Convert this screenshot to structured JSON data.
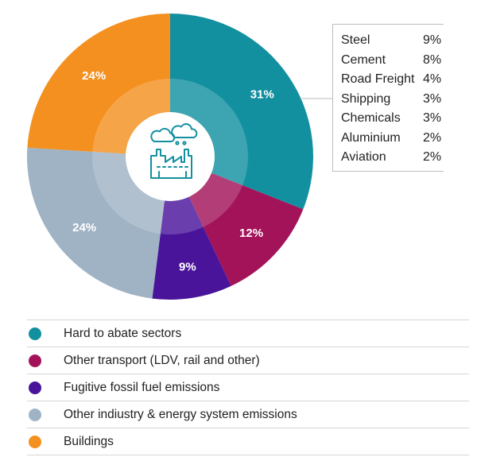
{
  "chart_data": {
    "type": "pie",
    "title": "",
    "slices": [
      {
        "name": "Hard to abate sectors",
        "value": 31,
        "label": "31%",
        "color": "#1390a0"
      },
      {
        "name": "Other transport (LDV, rail and other)",
        "value": 12,
        "label": "12%",
        "color": "#a3135a"
      },
      {
        "name": "Fugitive fossil fuel emissions",
        "value": 9,
        "label": "9%",
        "color": "#4a149a"
      },
      {
        "name": "Other indiustry & energy system emissions",
        "value": 24,
        "label": "24%",
        "color": "#9fb3c5"
      },
      {
        "name": "Buildings",
        "value": 24,
        "label": "24%",
        "color": "#f3901f"
      }
    ],
    "breakdown": {
      "parent": "Hard to abate sectors",
      "items": [
        {
          "name": "Steel",
          "value": 9,
          "label": "9%"
        },
        {
          "name": "Cement",
          "value": 8,
          "label": "8%"
        },
        {
          "name": "Road Freight",
          "value": 4,
          "label": "4%"
        },
        {
          "name": "Shipping",
          "value": 3,
          "label": "3%"
        },
        {
          "name": "Chemicals",
          "value": 3,
          "label": "3%"
        },
        {
          "name": "Aluminium",
          "value": 2,
          "label": "2%"
        },
        {
          "name": "Aviation",
          "value": 2,
          "label": "2%"
        }
      ]
    },
    "legend_position": "bottom"
  },
  "center_icon": "factory-with-clouds-icon"
}
